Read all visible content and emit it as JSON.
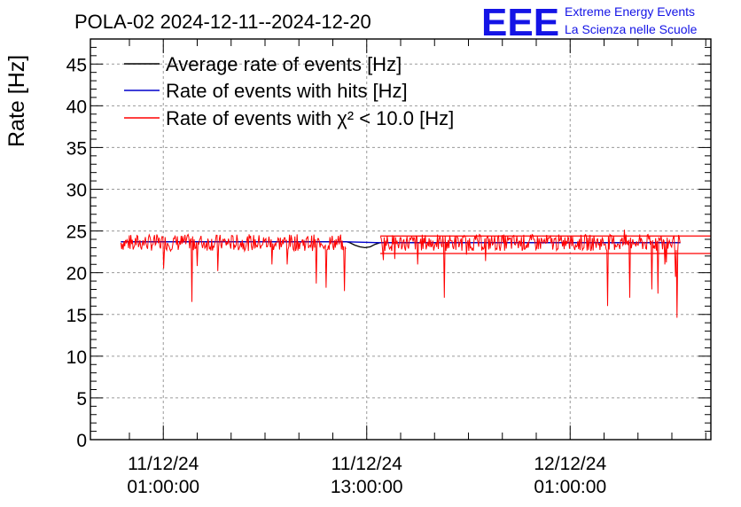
{
  "chart_data": {
    "type": "line",
    "title": "POLA-02 2024-12-11--2024-12-20",
    "ylabel": "Rate [Hz]",
    "xlabel": "",
    "ylim": [
      0,
      48
    ],
    "y_ticks": [
      0,
      5,
      10,
      15,
      20,
      25,
      30,
      35,
      40,
      45
    ],
    "x_ticks": [
      {
        "hours": 1,
        "line1": "11/12/24",
        "line2": "01:00:00"
      },
      {
        "hours": 13,
        "line1": "11/12/24",
        "line2": "13:00:00"
      },
      {
        "hours": 25,
        "line1": "12/12/24",
        "line2": "01:00:00"
      }
    ],
    "xlim_hours": [
      -3.3,
      33.3
    ],
    "grid": true,
    "legend_position": "top-left",
    "series": [
      {
        "name": "Average rate of events [Hz]",
        "color": "#000000",
        "x_hours": [
          -1.5,
          11.8,
          12.0,
          12.3,
          12.6,
          12.9,
          13.2,
          13.5,
          13.8,
          31.5
        ],
        "values": [
          23.7,
          23.7,
          23.6,
          23.3,
          23.1,
          23.0,
          23.1,
          23.4,
          23.6,
          23.6
        ]
      },
      {
        "name": "Rate of events with hits [Hz]",
        "color": "#0000cc",
        "x_hours": [
          -1.5,
          11.8,
          13.8,
          31.5
        ],
        "values": [
          23.7,
          23.7,
          23.6,
          23.6
        ]
      },
      {
        "name": "Rate of events with χ² < 10.0 [Hz]",
        "color": "#ff0000",
        "x_start_hours": -1.5,
        "x_end_hours": 31.5,
        "gap_hours": [
          11.8,
          13.8
        ],
        "mean": 23.6,
        "noise_amplitude": 1.0,
        "dips": [
          {
            "x_hours": 1.0,
            "value": 20.5
          },
          {
            "x_hours": 2.7,
            "value": 16.5
          },
          {
            "x_hours": 3.0,
            "value": 20.8
          },
          {
            "x_hours": 4.2,
            "value": 20.2
          },
          {
            "x_hours": 7.4,
            "value": 21.0
          },
          {
            "x_hours": 8.3,
            "value": 21.0
          },
          {
            "x_hours": 10.0,
            "value": 18.7
          },
          {
            "x_hours": 10.6,
            "value": 18.2
          },
          {
            "x_hours": 11.7,
            "value": 17.8
          },
          {
            "x_hours": 14.0,
            "value": 21.5
          },
          {
            "x_hours": 16.0,
            "value": 21.0
          },
          {
            "x_hours": 17.6,
            "value": 17.0
          },
          {
            "x_hours": 20.0,
            "value": 21.4
          },
          {
            "x_hours": 27.2,
            "value": 16.0
          },
          {
            "x_hours": 28.5,
            "value": 17.0
          },
          {
            "x_hours": 29.8,
            "value": 18.0
          },
          {
            "x_hours": 30.2,
            "value": 17.5
          },
          {
            "x_hours": 30.6,
            "value": 21.0
          },
          {
            "x_hours": 31.2,
            "value": 19.5
          },
          {
            "x_hours": 31.3,
            "value": 14.6
          }
        ],
        "tail_levels": [
          24.4,
          22.3
        ]
      }
    ]
  },
  "logo": {
    "big": "EEE",
    "line1": "Extreme Energy Events",
    "line2": "La Scienza nelle Scuole"
  }
}
